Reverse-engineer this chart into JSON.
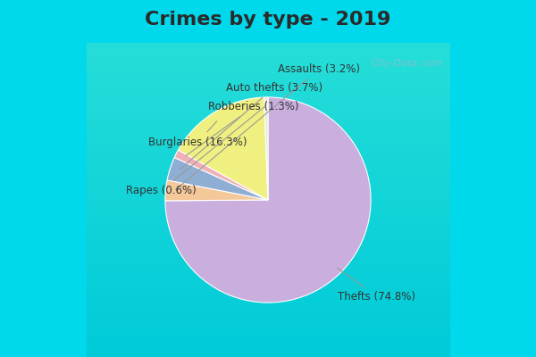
{
  "title": "Crimes by type - 2019",
  "order_labels": [
    "Thefts",
    "Assaults",
    "Auto thefts",
    "Robberies",
    "Burglaries",
    "Rapes"
  ],
  "order_pct": [
    74.8,
    3.2,
    3.7,
    1.3,
    16.3,
    0.6
  ],
  "order_colors": [
    "#c9aede",
    "#f5c89a",
    "#8faed4",
    "#f0b0b8",
    "#f0f080",
    "#e8e8d8"
  ],
  "order_fmt": [
    "Thefts (74.8%)",
    "Assaults (3.2%)",
    "Auto thefts (3.7%)",
    "Robberies (1.3%)",
    "Burglaries (16.3%)",
    "Rapes (0.6%)"
  ],
  "background_cyan": "#00d8ec",
  "background_chart": "#d6edd8",
  "title_fontsize": 16,
  "label_fontsize": 8.5,
  "watermark": "City-Data.com"
}
